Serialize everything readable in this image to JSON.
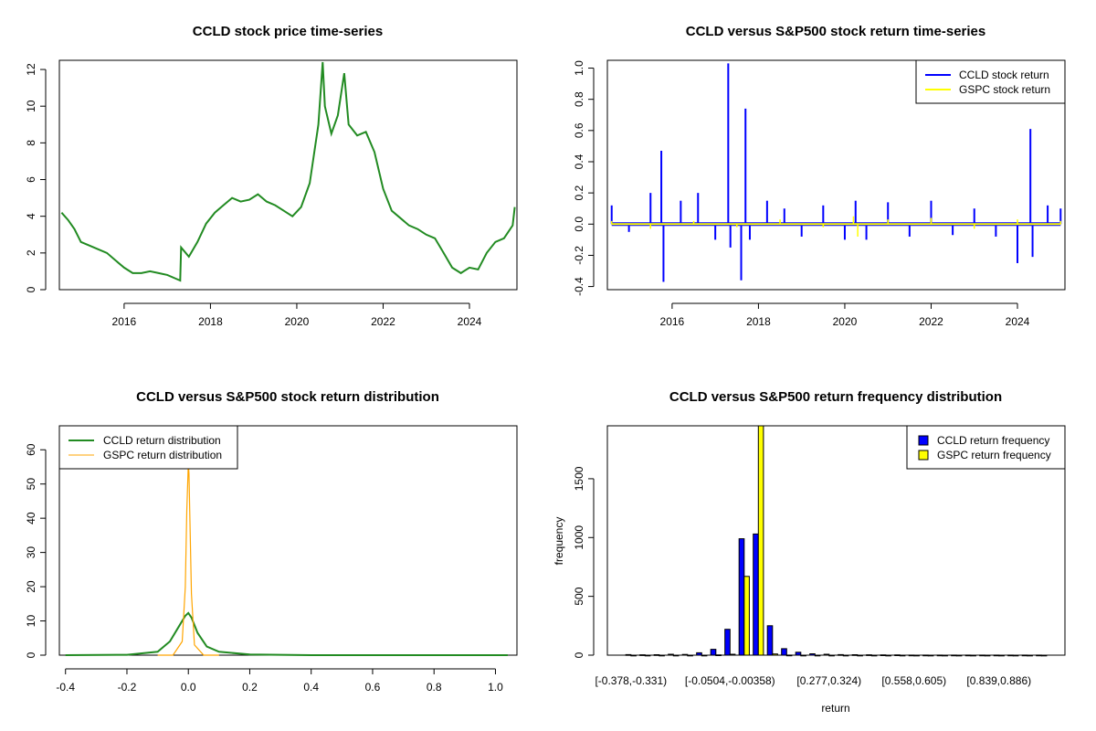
{
  "chart_data": [
    {
      "type": "line",
      "title": "CCLD stock price time-series",
      "xlabel": "",
      "ylabel": "",
      "x_ticks": [
        "2016",
        "2018",
        "2020",
        "2022",
        "2024"
      ],
      "x_tick_values": [
        2016,
        2018,
        2020,
        2022,
        2024
      ],
      "y_ticks": [
        "0",
        "2",
        "4",
        "6",
        "8",
        "10",
        "12"
      ],
      "y_tick_values": [
        0,
        2,
        4,
        6,
        8,
        10,
        12
      ],
      "xlim": [
        2014.5,
        2025.1
      ],
      "ylim": [
        0,
        12.5
      ],
      "series": [
        {
          "name": "CCLD",
          "color": "#228b22",
          "x": [
            2014.55,
            2014.7,
            2014.85,
            2015.0,
            2015.2,
            2015.4,
            2015.6,
            2015.8,
            2016.0,
            2016.2,
            2016.4,
            2016.6,
            2016.8,
            2017.0,
            2017.2,
            2017.3,
            2017.32,
            2017.5,
            2017.7,
            2017.9,
            2018.1,
            2018.3,
            2018.5,
            2018.7,
            2018.9,
            2019.1,
            2019.3,
            2019.5,
            2019.7,
            2019.9,
            2020.1,
            2020.3,
            2020.5,
            2020.6,
            2020.65,
            2020.8,
            2020.95,
            2021.1,
            2021.2,
            2021.4,
            2021.6,
            2021.8,
            2022.0,
            2022.2,
            2022.4,
            2022.6,
            2022.8,
            2023.0,
            2023.2,
            2023.4,
            2023.6,
            2023.8,
            2024.0,
            2024.2,
            2024.4,
            2024.6,
            2024.8,
            2025.0,
            2025.05
          ],
          "y": [
            4.2,
            3.8,
            3.3,
            2.6,
            2.4,
            2.2,
            2.0,
            1.6,
            1.2,
            0.9,
            0.9,
            1.0,
            0.9,
            0.8,
            0.6,
            0.5,
            2.3,
            1.8,
            2.6,
            3.6,
            4.2,
            4.6,
            5.0,
            4.8,
            4.9,
            5.2,
            4.8,
            4.6,
            4.3,
            4.0,
            4.5,
            5.8,
            9.0,
            12.4,
            10.0,
            8.5,
            9.5,
            11.8,
            9.0,
            8.4,
            8.6,
            7.5,
            5.5,
            4.3,
            3.9,
            3.5,
            3.3,
            3.0,
            2.8,
            2.0,
            1.2,
            0.9,
            1.2,
            1.1,
            2.0,
            2.6,
            2.8,
            3.5,
            4.5
          ]
        }
      ]
    },
    {
      "type": "line",
      "title": "CCLD versus S&P500 stock return time-series",
      "xlabel": "",
      "ylabel": "",
      "x_ticks": [
        "2016",
        "2018",
        "2020",
        "2022",
        "2024"
      ],
      "x_tick_values": [
        2016,
        2018,
        2020,
        2022,
        2024
      ],
      "y_ticks": [
        "-0.4",
        "-0.2",
        "0.0",
        "0.2",
        "0.4",
        "0.6",
        "0.8",
        "1.0"
      ],
      "y_tick_values": [
        -0.4,
        -0.2,
        0.0,
        0.2,
        0.4,
        0.6,
        0.8,
        1.0
      ],
      "xlim": [
        2014.5,
        2025.1
      ],
      "ylim": [
        -0.42,
        1.05
      ],
      "legend": [
        "CCLD stock return",
        "GSPC stock return"
      ],
      "legend_position": "top-right",
      "series": [
        {
          "name": "CCLD stock return",
          "color": "#0000ff",
          "x": [
            2014.6,
            2015.0,
            2015.5,
            2015.75,
            2015.8,
            2016.2,
            2016.6,
            2017.0,
            2017.3,
            2017.35,
            2017.6,
            2017.7,
            2017.8,
            2018.2,
            2018.6,
            2019.0,
            2019.5,
            2020.0,
            2020.25,
            2020.5,
            2021.0,
            2021.5,
            2022.0,
            2022.5,
            2023.0,
            2023.5,
            2024.0,
            2024.3,
            2024.35,
            2024.7,
            2025.0
          ],
          "y": [
            0.12,
            -0.05,
            0.2,
            0.47,
            -0.37,
            0.15,
            0.2,
            -0.1,
            1.03,
            -0.15,
            -0.36,
            0.74,
            -0.1,
            0.15,
            0.1,
            -0.08,
            0.12,
            -0.1,
            0.15,
            -0.1,
            0.14,
            -0.08,
            0.15,
            -0.07,
            0.1,
            -0.08,
            -0.25,
            0.61,
            -0.21,
            0.12,
            0.1
          ]
        },
        {
          "name": "GSPC stock return",
          "color": "#ffff00",
          "x": [
            2014.6,
            2015.5,
            2016.5,
            2017.5,
            2018.5,
            2019.5,
            2020.2,
            2020.3,
            2021.0,
            2022.0,
            2023.0,
            2024.0,
            2025.0
          ],
          "y": [
            0.02,
            -0.03,
            0.02,
            -0.02,
            0.03,
            -0.02,
            0.05,
            -0.08,
            0.03,
            0.04,
            -0.03,
            0.03,
            0.02
          ]
        }
      ]
    },
    {
      "type": "line",
      "title": "CCLD versus S&P500 stock return distribution",
      "xlabel": "",
      "ylabel": "",
      "x_ticks": [
        "-0.4",
        "-0.2",
        "0.0",
        "0.2",
        "0.4",
        "0.6",
        "0.8",
        "1.0"
      ],
      "x_tick_values": [
        -0.4,
        -0.2,
        0.0,
        0.2,
        0.4,
        0.6,
        0.8,
        1.0
      ],
      "y_ticks": [
        "0",
        "10",
        "20",
        "30",
        "40",
        "50",
        "60"
      ],
      "y_tick_values": [
        0,
        10,
        20,
        30,
        40,
        50,
        60
      ],
      "xlim": [
        -0.42,
        1.07
      ],
      "ylim": [
        0,
        67
      ],
      "legend": [
        "CCLD return distribution",
        "GSPC return distribution"
      ],
      "legend_position": "top-left",
      "series": [
        {
          "name": "CCLD return distribution",
          "color": "#228b22",
          "x": [
            -0.4,
            -0.2,
            -0.1,
            -0.06,
            -0.03,
            -0.01,
            0.0,
            0.01,
            0.03,
            0.06,
            0.1,
            0.2,
            0.4,
            0.6,
            1.04
          ],
          "y": [
            0.0,
            0.1,
            1.0,
            4.0,
            8.5,
            11.5,
            12.3,
            11.0,
            6.5,
            2.5,
            1.0,
            0.2,
            0.0,
            0.0,
            0.0
          ]
        },
        {
          "name": "GSPC return distribution",
          "color": "#ffa500",
          "x": [
            -0.1,
            -0.05,
            -0.02,
            -0.01,
            -0.005,
            0.0,
            0.002,
            0.005,
            0.01,
            0.02,
            0.05,
            0.1
          ],
          "y": [
            0.0,
            0.0,
            4.0,
            20.0,
            42.0,
            56.0,
            53.0,
            40.0,
            18.0,
            3.0,
            0.0,
            0.0
          ]
        }
      ]
    },
    {
      "type": "bar",
      "title": "CCLD versus S&P500 return frequency distribution",
      "xlabel": "return",
      "ylabel": "frequency",
      "x_tick_labels": [
        "[-0.378,-0.331)",
        "[-0.0504,-0.00358)",
        "[0.277,0.324)",
        "[0.558,0.605)",
        "[0.839,0.886)"
      ],
      "x_tick_bins": [
        0,
        7,
        14,
        20,
        26
      ],
      "y_ticks": [
        "0",
        "500",
        "1000",
        "1500"
      ],
      "y_tick_values": [
        0,
        500,
        1000,
        1500
      ],
      "ylim": [
        0,
        1950
      ],
      "legend": [
        "CCLD return frequency",
        "GSPC return frequency"
      ],
      "legend_position": "top-right",
      "bins": 30,
      "series": [
        {
          "name": "CCLD return frequency",
          "color": "#0000ff",
          "values": [
            5,
            3,
            4,
            8,
            6,
            20,
            50,
            220,
            990,
            1030,
            250,
            55,
            25,
            12,
            8,
            5,
            4,
            3,
            2,
            2,
            1,
            1,
            1,
            1,
            1,
            1,
            1,
            1,
            1,
            1
          ]
        },
        {
          "name": "GSPC return frequency",
          "color": "#ffff00",
          "values": [
            0,
            0,
            0,
            0,
            0,
            0,
            2,
            8,
            670,
            1950,
            10,
            1,
            0,
            0,
            0,
            0,
            0,
            0,
            0,
            0,
            0,
            0,
            0,
            0,
            0,
            0,
            0,
            0,
            0,
            0
          ]
        }
      ]
    }
  ]
}
